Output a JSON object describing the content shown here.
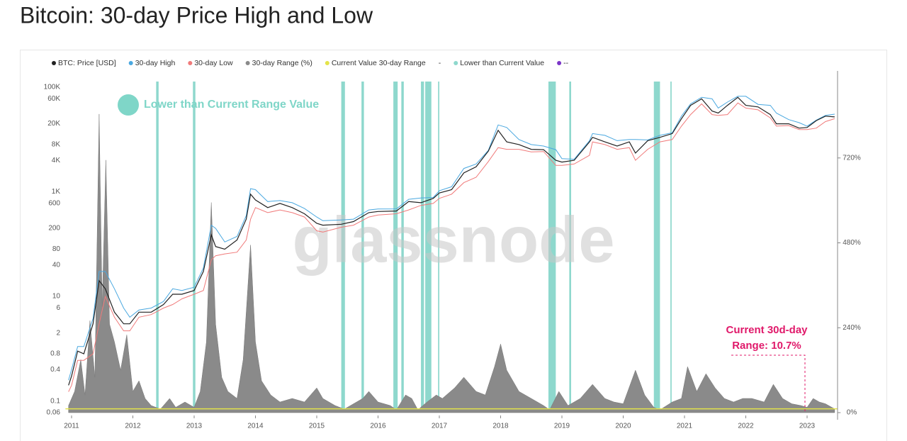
{
  "chart_data": {
    "type": "line",
    "title": "Bitcoin: 30-day Price High and Low",
    "watermark": "glassnode",
    "annotations": [
      "Lower than Current Range Value",
      "Current 30d-day",
      "Range: 10.7%"
    ],
    "log_y": true,
    "xlim": [
      2010.9,
      2023.5
    ],
    "xticks": [
      2011,
      2012,
      2013,
      2014,
      2015,
      2016,
      2017,
      2018,
      2019,
      2020,
      2021,
      2022,
      2023
    ],
    "ylim": [
      0.06,
      100000
    ],
    "yticks": [
      0.06,
      0.1,
      0.4,
      0.8,
      2,
      6,
      10,
      40,
      80,
      200,
      600,
      {
        "value": 1000,
        "label": "1K"
      },
      {
        "value": 4000,
        "label": "4K"
      },
      {
        "value": 8000,
        "label": "8K"
      },
      {
        "value": 20000,
        "label": "20K"
      },
      {
        "value": 60000,
        "label": "60K"
      },
      {
        "value": 100000,
        "label": "100K"
      }
    ],
    "y2lim": [
      0,
      920
    ],
    "y2ticks": [
      {
        "value": 0,
        "label": "0%"
      },
      {
        "value": 240,
        "label": "240%"
      },
      {
        "value": 480,
        "label": "480%"
      },
      {
        "value": 720,
        "label": "720%"
      }
    ],
    "x": [
      2010.95,
      2011.0,
      2011.1,
      2011.2,
      2011.35,
      2011.45,
      2011.55,
      2011.7,
      2011.85,
      2011.95,
      2012.1,
      2012.3,
      2012.5,
      2012.65,
      2012.8,
      2013.0,
      2013.15,
      2013.28,
      2013.35,
      2013.5,
      2013.7,
      2013.85,
      2013.92,
      2014.0,
      2014.2,
      2014.4,
      2014.6,
      2014.8,
      2015.0,
      2015.1,
      2015.4,
      2015.6,
      2015.85,
      2016.0,
      2016.3,
      2016.5,
      2016.7,
      2016.9,
      2017.0,
      2017.2,
      2017.4,
      2017.6,
      2017.8,
      2017.96,
      2018.1,
      2018.3,
      2018.5,
      2018.7,
      2018.9,
      2019.0,
      2019.2,
      2019.45,
      2019.5,
      2019.7,
      2019.9,
      2020.1,
      2020.2,
      2020.4,
      2020.6,
      2020.8,
      2020.95,
      2021.1,
      2021.28,
      2021.45,
      2021.55,
      2021.7,
      2021.87,
      2022.0,
      2022.2,
      2022.4,
      2022.5,
      2022.7,
      2022.87,
      2023.0,
      2023.15,
      2023.3,
      2023.45
    ],
    "series": [
      {
        "name": "BTC: Price [USD]",
        "color": "#222222",
        "values": [
          0.2,
          0.3,
          0.9,
          0.8,
          3,
          20,
          14,
          5,
          3,
          3,
          5,
          5,
          7,
          11,
          11,
          13,
          30,
          150,
          90,
          80,
          120,
          300,
          900,
          700,
          500,
          600,
          500,
          380,
          250,
          230,
          240,
          270,
          400,
          420,
          430,
          650,
          620,
          750,
          950,
          1100,
          2300,
          3000,
          6000,
          15000,
          9000,
          8000,
          6500,
          6400,
          4000,
          3700,
          4000,
          9000,
          11000,
          9000,
          7500,
          9000,
          5500,
          9500,
          11000,
          13000,
          25000,
          45000,
          60000,
          35000,
          32000,
          45000,
          64000,
          45000,
          42000,
          30000,
          20000,
          20000,
          16500,
          17000,
          23000,
          28000,
          27000
        ]
      },
      {
        "name": "30-day High",
        "color": "#4aa8e0",
        "values": [
          0.25,
          0.4,
          1.1,
          1.1,
          3.8,
          30,
          30,
          14,
          6,
          4,
          5.5,
          6,
          8,
          14,
          13,
          15,
          35,
          230,
          200,
          110,
          140,
          350,
          1150,
          1100,
          650,
          680,
          620,
          480,
          330,
          280,
          290,
          300,
          450,
          470,
          470,
          720,
          760,
          780,
          1050,
          1250,
          2800,
          3400,
          6200,
          19000,
          17000,
          10000,
          8000,
          7500,
          6400,
          4300,
          4200,
          9500,
          13000,
          12000,
          9500,
          10000,
          10000,
          9800,
          12000,
          13500,
          28000,
          48000,
          64000,
          60000,
          40000,
          52000,
          67000,
          67000,
          47000,
          45000,
          32000,
          24000,
          21000,
          18000,
          23500,
          29000,
          30500
        ]
      },
      {
        "name": "30-day Low",
        "color": "#f07a7a",
        "values": [
          0.15,
          0.2,
          0.6,
          0.6,
          0.8,
          3,
          10,
          4,
          2.2,
          2.2,
          4,
          4.5,
          6,
          7,
          9,
          11,
          13,
          50,
          60,
          65,
          70,
          120,
          300,
          500,
          400,
          450,
          400,
          330,
          180,
          170,
          210,
          230,
          330,
          360,
          380,
          450,
          550,
          600,
          750,
          900,
          1500,
          1900,
          3800,
          7000,
          6500,
          6500,
          5800,
          5900,
          3200,
          3200,
          3400,
          5000,
          9000,
          8000,
          6500,
          7000,
          4000,
          6500,
          9000,
          10000,
          18000,
          30000,
          48000,
          30000,
          29000,
          30000,
          50000,
          40000,
          37000,
          26000,
          18000,
          18500,
          15500,
          15500,
          16500,
          22000,
          25000
        ]
      },
      {
        "name": "30-day Range (%)",
        "color": "#8a8a8a",
        "axis": "y2",
        "x": [
          2010.95,
          2011.05,
          2011.15,
          2011.22,
          2011.3,
          2011.38,
          2011.45,
          2011.5,
          2011.56,
          2011.62,
          2011.7,
          2011.8,
          2011.9,
          2012.0,
          2012.1,
          2012.2,
          2012.3,
          2012.45,
          2012.6,
          2012.7,
          2012.85,
          2013.0,
          2013.1,
          2013.2,
          2013.28,
          2013.35,
          2013.45,
          2013.55,
          2013.7,
          2013.8,
          2013.92,
          2014.0,
          2014.1,
          2014.25,
          2014.4,
          2014.6,
          2014.8,
          2015.0,
          2015.1,
          2015.3,
          2015.45,
          2015.55,
          2015.75,
          2015.85,
          2016.0,
          2016.2,
          2016.3,
          2016.45,
          2016.55,
          2016.65,
          2016.8,
          2016.95,
          2017.05,
          2017.25,
          2017.4,
          2017.6,
          2017.75,
          2017.9,
          2018.0,
          2018.1,
          2018.3,
          2018.5,
          2018.7,
          2018.8,
          2018.95,
          2019.1,
          2019.3,
          2019.5,
          2019.7,
          2019.85,
          2020.0,
          2020.2,
          2020.35,
          2020.5,
          2020.6,
          2020.8,
          2020.95,
          2021.05,
          2021.2,
          2021.35,
          2021.5,
          2021.65,
          2021.8,
          2021.95,
          2022.1,
          2022.3,
          2022.45,
          2022.6,
          2022.75,
          2022.9,
          2023.0,
          2023.1,
          2023.2,
          2023.3,
          2023.45
        ],
        "values": [
          20,
          60,
          150,
          50,
          260,
          100,
          844,
          300,
          714,
          250,
          200,
          120,
          220,
          60,
          90,
          40,
          20,
          10,
          40,
          15,
          30,
          15,
          60,
          200,
          594,
          250,
          100,
          60,
          40,
          150,
          474,
          200,
          90,
          50,
          30,
          40,
          30,
          70,
          40,
          20,
          10,
          20,
          40,
          60,
          30,
          20,
          8,
          50,
          40,
          8,
          30,
          50,
          40,
          70,
          100,
          60,
          50,
          130,
          194,
          120,
          60,
          40,
          20,
          8,
          60,
          20,
          40,
          80,
          40,
          30,
          25,
          120,
          50,
          15,
          8,
          30,
          40,
          130,
          60,
          110,
          70,
          40,
          30,
          40,
          40,
          30,
          80,
          40,
          25,
          20,
          15,
          40,
          30,
          25,
          10.7
        ]
      },
      {
        "name": "Current Value 30-day Range",
        "color": "#e4e44a",
        "axis": "y2",
        "value": 10.7
      },
      {
        "name": "-"
      },
      {
        "name": "Lower than Current Value",
        "color": "#8ed8cd",
        "spans": [
          [
            2012.38,
            2012.42
          ],
          [
            2012.98,
            2013.02
          ],
          [
            2015.4,
            2015.46
          ],
          [
            2015.73,
            2015.77
          ],
          [
            2016.25,
            2016.32
          ],
          [
            2016.38,
            2016.42
          ],
          [
            2016.7,
            2016.75
          ],
          [
            2016.77,
            2016.87
          ],
          [
            2016.98,
            2017.0
          ],
          [
            2018.78,
            2018.9
          ],
          [
            2019.12,
            2019.15
          ],
          [
            2020.5,
            2020.6
          ],
          [
            2020.77,
            2020.79
          ]
        ]
      },
      {
        "name": "--",
        "color": "#7b35c8"
      }
    ]
  }
}
